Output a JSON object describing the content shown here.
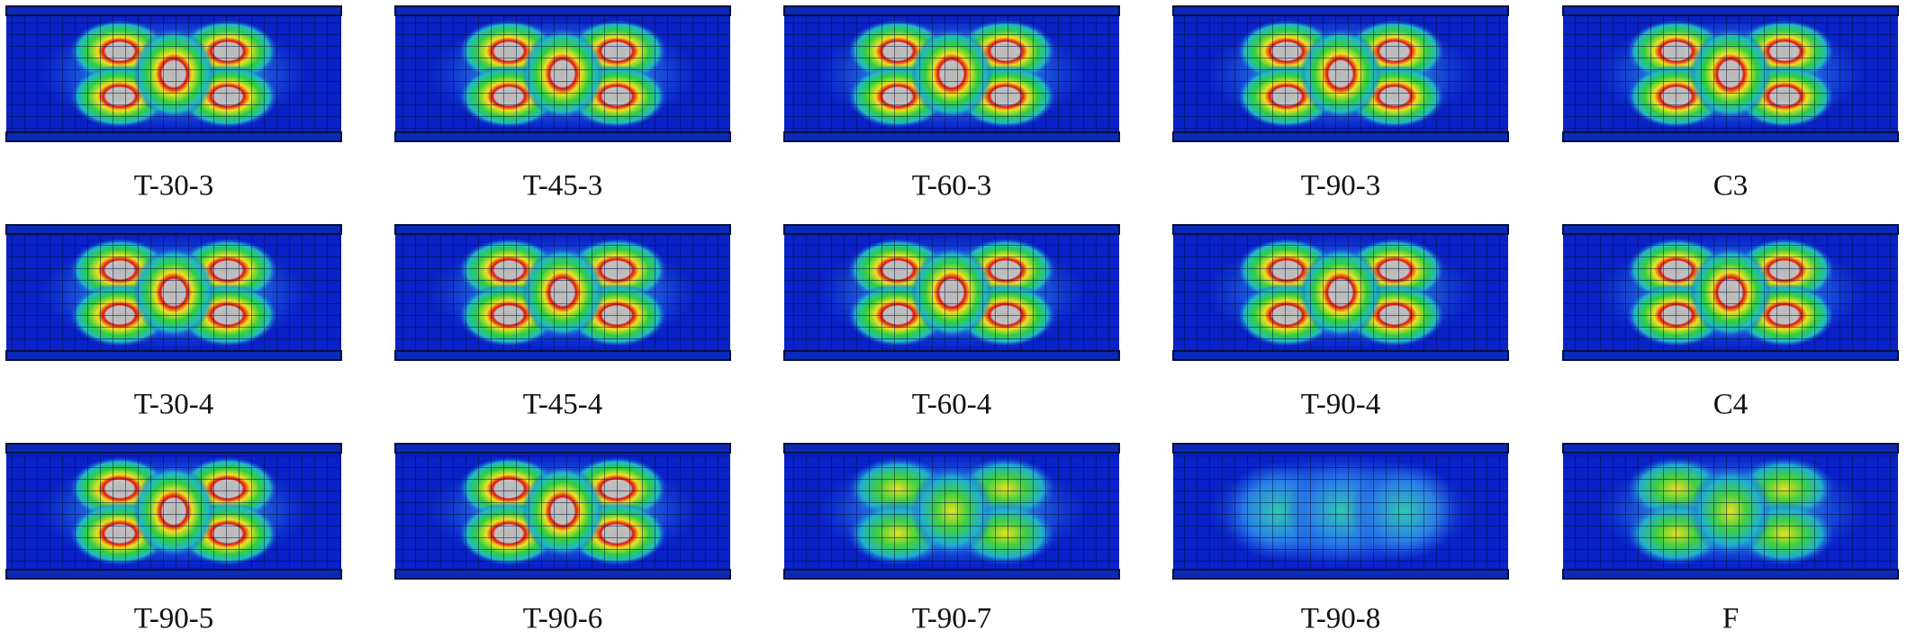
{
  "panels": [
    {
      "label": "T-30-3"
    },
    {
      "label": "T-45-3"
    },
    {
      "label": "T-60-3"
    },
    {
      "label": "T-90-3"
    },
    {
      "label": "C3"
    },
    {
      "label": "T-30-4"
    },
    {
      "label": "T-45-4"
    },
    {
      "label": "T-60-4"
    },
    {
      "label": "T-90-4"
    },
    {
      "label": "C4"
    },
    {
      "label": "T-90-5"
    },
    {
      "label": "T-90-6"
    },
    {
      "label": "T-90-7"
    },
    {
      "label": "T-90-8"
    },
    {
      "label": "F"
    }
  ]
}
